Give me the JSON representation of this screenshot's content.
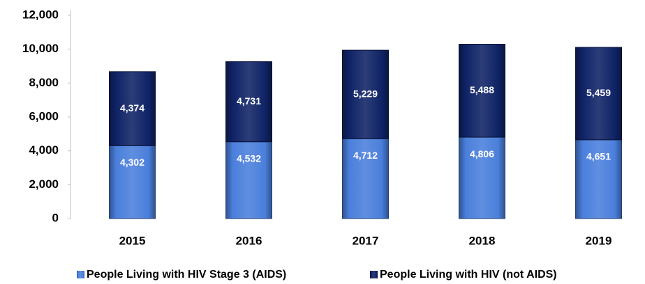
{
  "chart_data": {
    "type": "stacked_bar",
    "categories": [
      "2015",
      "2016",
      "2017",
      "2018",
      "2019"
    ],
    "series": [
      {
        "name": "People Living with HIV Stage 3 (AIDS)",
        "color": "#4a7fdc",
        "values": [
          4302,
          4532,
          4712,
          4806,
          4651
        ],
        "value_labels": [
          "4,302",
          "4,532",
          "4,712",
          "4,806",
          "4,651"
        ]
      },
      {
        "name": "People Living with HIV  (not AIDS)",
        "color": "#0f2366",
        "values": [
          4374,
          4731,
          5229,
          5488,
          5459
        ],
        "value_labels": [
          "4,374",
          "4,731",
          "5,229",
          "5,488",
          "5,459"
        ]
      }
    ],
    "ylim": [
      0,
      12000
    ],
    "yticks": [
      {
        "value": 0,
        "label": "0"
      },
      {
        "value": 2000,
        "label": "2,000"
      },
      {
        "value": 4000,
        "label": "4,000"
      },
      {
        "value": 6000,
        "label": "6,000"
      },
      {
        "value": 8000,
        "label": "8,000"
      },
      {
        "value": 10000,
        "label": "10,000"
      },
      {
        "value": 12000,
        "label": "12,000"
      }
    ],
    "legend": "bottom"
  }
}
